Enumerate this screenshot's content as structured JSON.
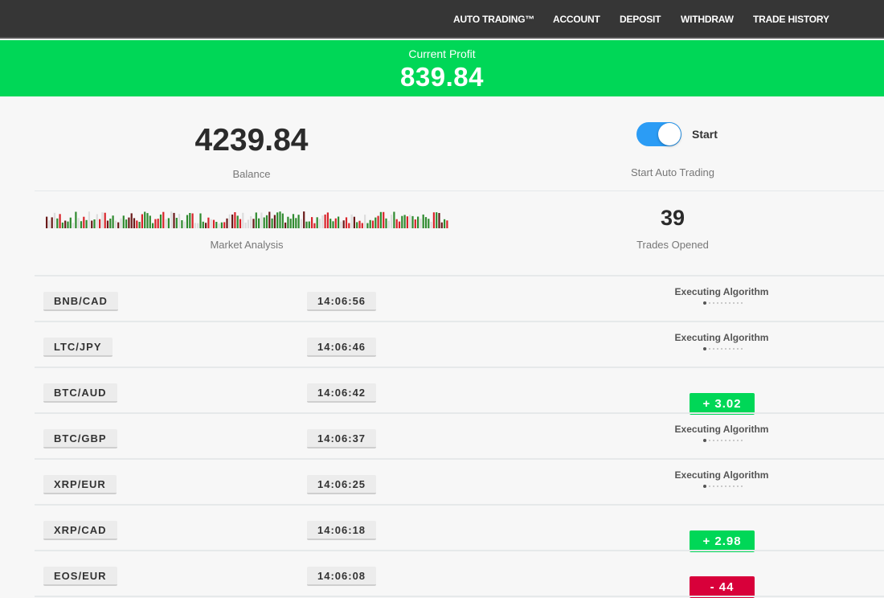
{
  "nav": {
    "items": [
      "AUTO TRADING™",
      "ACCOUNT",
      "DEPOSIT",
      "WITHDRAW",
      "TRADE HISTORY"
    ]
  },
  "profit": {
    "label": "Current Profit",
    "value": "839.84"
  },
  "balance": {
    "value": "4239.84",
    "label": "Balance"
  },
  "auto": {
    "toggle_label": "Start",
    "caption": "Start Auto Trading",
    "enabled": true
  },
  "market": {
    "label": "Market Analysis"
  },
  "trades": {
    "value": "39",
    "label": "Trades Opened"
  },
  "colors": {
    "green": "#00d757",
    "red": "#d8003a",
    "toggle": "#2b9cf5"
  },
  "rows": [
    {
      "pair": "BNB/CAD",
      "time": "14:06:56",
      "status": "Executing Algorithm"
    },
    {
      "pair": "LTC/JPY",
      "time": "14:06:46",
      "status": "Executing Algorithm"
    },
    {
      "pair": "BTC/AUD",
      "time": "14:06:42",
      "result": "+  3.02",
      "type": "win"
    },
    {
      "pair": "BTC/GBP",
      "time": "14:06:37",
      "status": "Executing Algorithm"
    },
    {
      "pair": "XRP/EUR",
      "time": "14:06:25",
      "status": "Executing Algorithm"
    },
    {
      "pair": "XRP/CAD",
      "time": "14:06:18",
      "result": "+  2.98",
      "type": "win"
    },
    {
      "pair": "EOS/EUR",
      "time": "14:06:08",
      "result": "-   44",
      "type": "loss"
    }
  ]
}
